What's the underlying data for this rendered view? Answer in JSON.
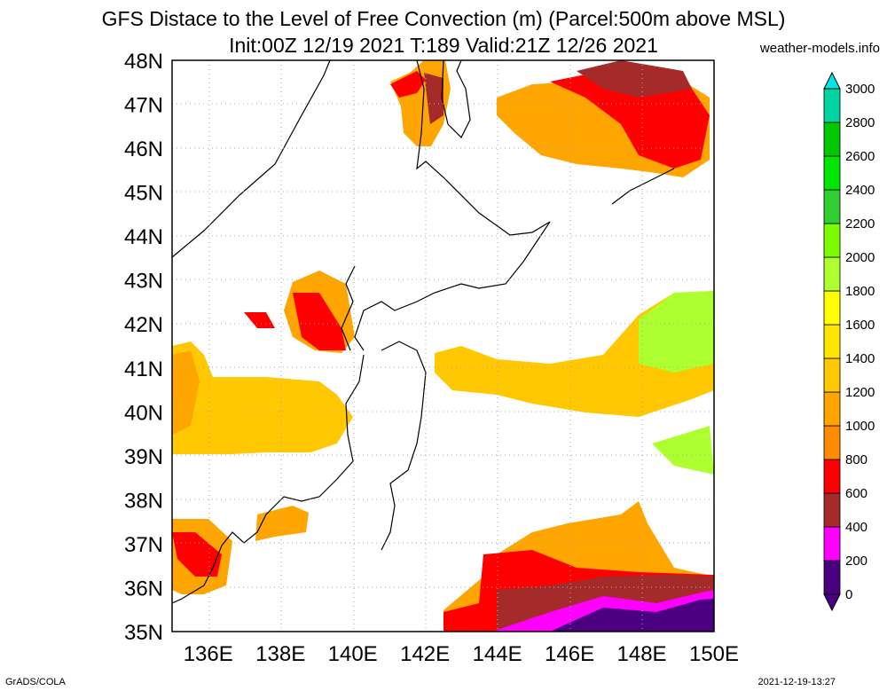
{
  "title": {
    "line1": "GFS Distace to the Level of Free Convection (m) (Parcel:500m above MSL)",
    "line2": "Init:00Z 12/19 2021 T:189 Valid:21Z 12/26 2021",
    "site": "weather-models.info"
  },
  "axes": {
    "lat_labels": [
      "35N",
      "36N",
      "37N",
      "38N",
      "39N",
      "40N",
      "41N",
      "42N",
      "43N",
      "44N",
      "45N",
      "46N",
      "47N",
      "48N"
    ],
    "lon_labels": [
      "136E",
      "138E",
      "140E",
      "142E",
      "144E",
      "146E",
      "148E",
      "150E"
    ],
    "lat_range": [
      35,
      48
    ],
    "lon_range": [
      135,
      150
    ],
    "grid": true
  },
  "colorbar": {
    "labels": [
      "0",
      "200",
      "400",
      "600",
      "800",
      "1000",
      "1200",
      "1400",
      "1600",
      "1800",
      "2000",
      "2200",
      "2400",
      "2600",
      "2800",
      "3000"
    ],
    "colors": [
      "#4b0082",
      "#ff00ff",
      "#a52a2a",
      "#ff0000",
      "#ff8c00",
      "#ffa500",
      "#ffc800",
      "#ffe600",
      "#ffff00",
      "#adff2f",
      "#7cfc00",
      "#32cd32",
      "#00e600",
      "#00c800",
      "#00d4a0",
      "#00e6e6"
    ]
  },
  "footer": {
    "credit": "GrADS/COLA",
    "timestamp": "2021-12-19-13:27"
  }
}
